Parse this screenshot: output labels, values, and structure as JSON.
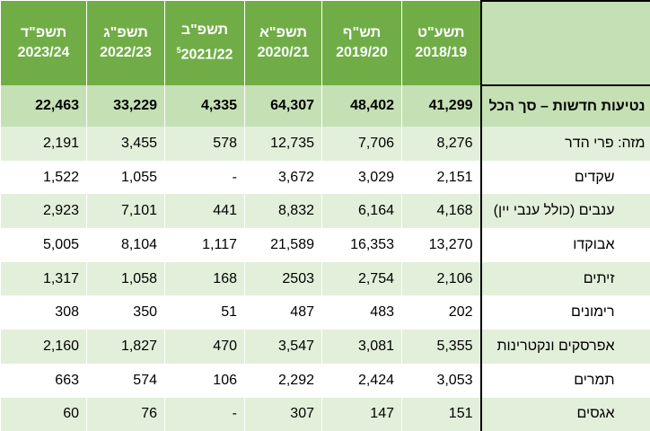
{
  "headers": [
    {
      "hebrew": "תשפ\"ד",
      "years": "2023/24",
      "note": ""
    },
    {
      "hebrew": "תשפ\"ג",
      "years": "2022/23",
      "note": ""
    },
    {
      "hebrew": "תשפ\"ב",
      "years": "2021/22",
      "note": "5"
    },
    {
      "hebrew": "תשפ\"א",
      "years": "2020/21",
      "note": ""
    },
    {
      "hebrew": "תש\"ף",
      "years": "2019/20",
      "note": ""
    },
    {
      "hebrew": "תשע\"ט",
      "years": "2018/19",
      "note": ""
    }
  ],
  "total": {
    "label": "נטיעות חדשות – סך הכל",
    "values": [
      "22,463",
      "33,229",
      "4,335",
      "64,307",
      "48,402",
      "41,299"
    ]
  },
  "rows": [
    {
      "label": "מזה: פרי הדר",
      "values": [
        "2,191",
        "3,455",
        "578",
        "12,735",
        "7,706",
        "8,276"
      ]
    },
    {
      "label": "שקדים",
      "values": [
        "1,522",
        "1,055",
        "-",
        "3,672",
        "3,029",
        "2,151"
      ]
    },
    {
      "label": "ענבים (כולל ענבי יין)",
      "values": [
        "2,923",
        "7,101",
        "441",
        "8,832",
        "6,164",
        "4,168"
      ]
    },
    {
      "label": "אבוקדו",
      "values": [
        "5,005",
        "8,104",
        "1,117",
        "21,589",
        "16,353",
        "13,270"
      ]
    },
    {
      "label": "זיתים",
      "values": [
        "1,317",
        "1,058",
        "168",
        "2503",
        "2,754",
        "2,106"
      ]
    },
    {
      "label": "רימונים",
      "values": [
        "308",
        "350",
        "51",
        "487",
        "483",
        "202"
      ]
    },
    {
      "label": "אפרסקים ונקטרינות",
      "values": [
        "2,160",
        "1,827",
        "470",
        "3,547",
        "3,081",
        "5,355"
      ]
    },
    {
      "label": "תמרים",
      "values": [
        "663",
        "574",
        "106",
        "2,292",
        "2,424",
        "3,053"
      ]
    },
    {
      "label": "אגסים",
      "values": [
        "60",
        "76",
        "-",
        "307",
        "147",
        "151"
      ]
    }
  ],
  "colors": {
    "header": "#70AD47",
    "total": "#C5E0B4",
    "alt_row": "#E2EFDA"
  }
}
